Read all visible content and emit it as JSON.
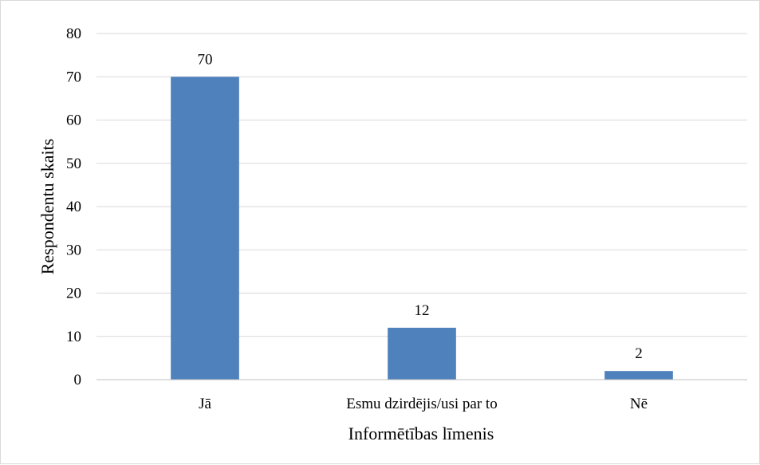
{
  "chart_data": {
    "type": "bar",
    "categories": [
      "Jā",
      "Esmu dzirdējis/usi par to",
      "Nē"
    ],
    "values": [
      70,
      12,
      2
    ],
    "data_labels": [
      "70",
      "12",
      "2"
    ],
    "title": "",
    "xlabel": "Informētības līmenis",
    "ylabel": "Respondentu skaits",
    "ylim": [
      0,
      80
    ],
    "yticks": [
      0,
      10,
      20,
      30,
      40,
      50,
      60,
      70,
      80
    ],
    "grid": true,
    "legend": "none",
    "bar_color": "#4f81bd",
    "grid_color": "#d9d9d9",
    "axis_color": "#bfbfbf"
  }
}
